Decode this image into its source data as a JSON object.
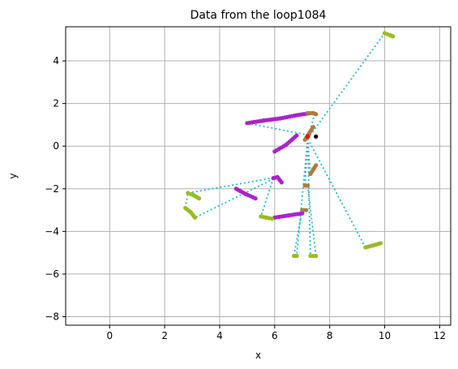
{
  "chart_data": {
    "type": "scatter",
    "title": "Data from the loop1084",
    "xlabel": "x",
    "ylabel": "y",
    "xlim": [
      -1.6,
      12.4
    ],
    "ylim": [
      -8.4,
      5.6
    ],
    "xticks": [
      0,
      2,
      4,
      6,
      8,
      10,
      12
    ],
    "yticks": [
      -8,
      -6,
      -4,
      -2,
      0,
      2,
      4
    ],
    "grid": true,
    "colors": {
      "purple": "#aa22cc",
      "olive": "#99bb22",
      "brown": "#b07a3c",
      "cyan": "#22bbcc",
      "red": "#ee1111",
      "black": "#000000"
    },
    "purple_segments": [
      [
        [
          5.0,
          1.08
        ],
        [
          5.6,
          1.2
        ],
        [
          6.2,
          1.3
        ],
        [
          6.8,
          1.45
        ],
        [
          7.3,
          1.55
        ]
      ],
      [
        [
          6.0,
          -0.25
        ],
        [
          6.4,
          0.05
        ],
        [
          6.8,
          0.5
        ]
      ],
      [
        [
          5.95,
          -1.5
        ],
        [
          6.1,
          -1.45
        ],
        [
          6.25,
          -1.7
        ]
      ],
      [
        [
          4.6,
          -2.0
        ],
        [
          4.95,
          -2.25
        ],
        [
          5.3,
          -2.45
        ]
      ],
      [
        [
          6.0,
          -3.35
        ],
        [
          6.5,
          -3.25
        ],
        [
          7.0,
          -3.15
        ]
      ]
    ],
    "olive_segments": [
      [
        [
          10.0,
          5.3
        ],
        [
          10.2,
          5.2
        ],
        [
          10.3,
          5.15
        ]
      ],
      [
        [
          2.85,
          -2.2
        ],
        [
          3.05,
          -2.3
        ],
        [
          3.25,
          -2.45
        ]
      ],
      [
        [
          2.75,
          -2.9
        ],
        [
          2.95,
          -3.1
        ],
        [
          3.1,
          -3.35
        ]
      ],
      [
        [
          5.5,
          -3.3
        ],
        [
          5.7,
          -3.35
        ],
        [
          5.9,
          -3.4
        ]
      ],
      [
        [
          9.3,
          -4.75
        ],
        [
          9.6,
          -4.65
        ],
        [
          9.85,
          -4.55
        ]
      ],
      [
        [
          6.7,
          -5.15
        ],
        [
          6.8,
          -5.15
        ]
      ],
      [
        [
          7.3,
          -5.15
        ],
        [
          7.5,
          -5.15
        ]
      ]
    ],
    "brown_segments": [
      [
        [
          7.2,
          1.55
        ],
        [
          7.4,
          1.55
        ],
        [
          7.5,
          1.5
        ]
      ],
      [
        [
          7.1,
          0.3
        ],
        [
          7.25,
          0.6
        ],
        [
          7.4,
          0.9
        ]
      ],
      [
        [
          7.3,
          -1.3
        ],
        [
          7.4,
          -1.1
        ],
        [
          7.5,
          -0.9
        ]
      ],
      [
        [
          7.1,
          -1.85
        ],
        [
          7.2,
          -1.85
        ]
      ],
      [
        [
          7.0,
          -3.0
        ],
        [
          7.15,
          -3.0
        ]
      ]
    ],
    "dotted_links": [
      [
        [
          7.2,
          0.35
        ],
        [
          10.0,
          5.3
        ]
      ],
      [
        [
          7.2,
          0.35
        ],
        [
          7.45,
          1.5
        ]
      ],
      [
        [
          5.0,
          1.08
        ],
        [
          7.1,
          0.55
        ]
      ],
      [
        [
          7.2,
          0.35
        ],
        [
          7.3,
          -1.3
        ]
      ],
      [
        [
          7.2,
          0.35
        ],
        [
          7.1,
          -1.85
        ]
      ],
      [
        [
          7.2,
          0.35
        ],
        [
          9.3,
          -4.75
        ]
      ],
      [
        [
          7.2,
          0.35
        ],
        [
          7.3,
          -5.15
        ]
      ],
      [
        [
          7.2,
          0.35
        ],
        [
          6.8,
          -5.15
        ]
      ],
      [
        [
          6.1,
          -1.45
        ],
        [
          2.85,
          -2.2
        ]
      ],
      [
        [
          6.1,
          -1.45
        ],
        [
          3.1,
          -3.35
        ]
      ],
      [
        [
          5.95,
          -1.5
        ],
        [
          5.5,
          -3.3
        ]
      ],
      [
        [
          7.0,
          -3.0
        ],
        [
          6.7,
          -5.15
        ]
      ],
      [
        [
          7.2,
          -1.85
        ],
        [
          7.5,
          -5.15
        ]
      ],
      [
        [
          2.75,
          -2.9
        ],
        [
          2.85,
          -2.2
        ]
      ]
    ],
    "red_points": [
      [
        7.2,
        0.45
      ]
    ],
    "black_points": [
      [
        7.5,
        0.45
      ]
    ]
  }
}
